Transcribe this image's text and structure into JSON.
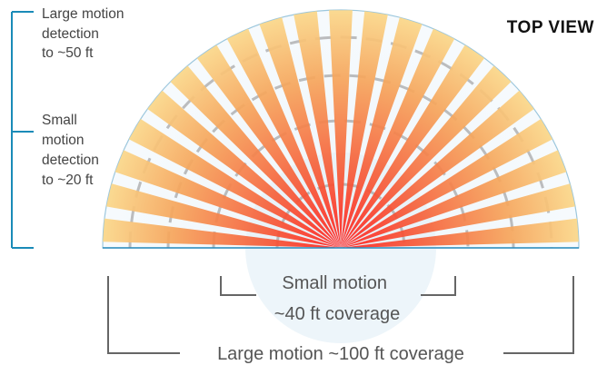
{
  "title": "TOP VIEW",
  "large_side_label": [
    "Large motion",
    "detection",
    "to ~50 ft"
  ],
  "small_side_label": [
    "Small",
    "motion",
    "detection",
    "to  ~20 ft"
  ],
  "small_bottom_label": [
    "Small motion",
    "~40 ft coverage"
  ],
  "large_bottom_label": "Large motion ~100 ft coverage",
  "colors": {
    "bracket": "#1a8bb8",
    "dimension_line": "#666666",
    "ray_inner": "#ff2a2a",
    "ray_outer": "#ffd35a"
  }
}
